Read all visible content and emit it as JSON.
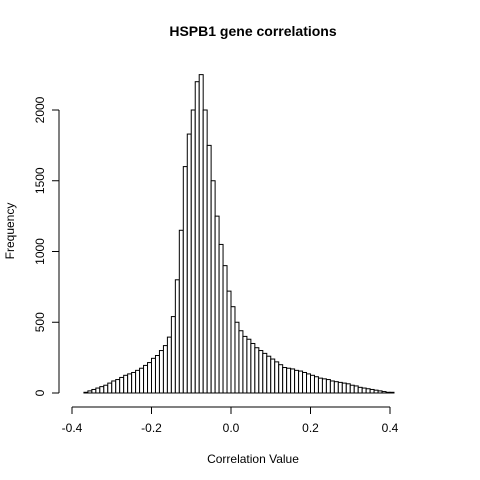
{
  "chart_data": {
    "type": "bar",
    "title": "HSPB1 gene correlations",
    "xlabel": "Correlation Value",
    "ylabel": "Frequency",
    "xlim": [
      -0.4,
      0.5
    ],
    "ylim": [
      0,
      2250
    ],
    "x_ticks": [
      "-0.4",
      "-0.2",
      "0.0",
      "0.2",
      "0.4"
    ],
    "y_ticks": [
      "0",
      "500",
      "1000",
      "1500",
      "2000"
    ],
    "bin_width": 0.01,
    "bin_start": -0.37,
    "values": [
      5,
      15,
      25,
      35,
      45,
      55,
      70,
      85,
      95,
      110,
      125,
      135,
      145,
      160,
      175,
      195,
      215,
      245,
      265,
      300,
      335,
      395,
      540,
      800,
      1150,
      1600,
      1830,
      2000,
      2200,
      2250,
      2000,
      1750,
      1500,
      1250,
      1050,
      900,
      720,
      610,
      500,
      440,
      400,
      380,
      350,
      320,
      300,
      280,
      260,
      240,
      220,
      200,
      180,
      175,
      170,
      160,
      155,
      145,
      135,
      125,
      115,
      105,
      100,
      95,
      85,
      80,
      75,
      70,
      65,
      55,
      50,
      40,
      35,
      30,
      25,
      20,
      15,
      10,
      5,
      5
    ],
    "grid": false,
    "legend": "none"
  }
}
